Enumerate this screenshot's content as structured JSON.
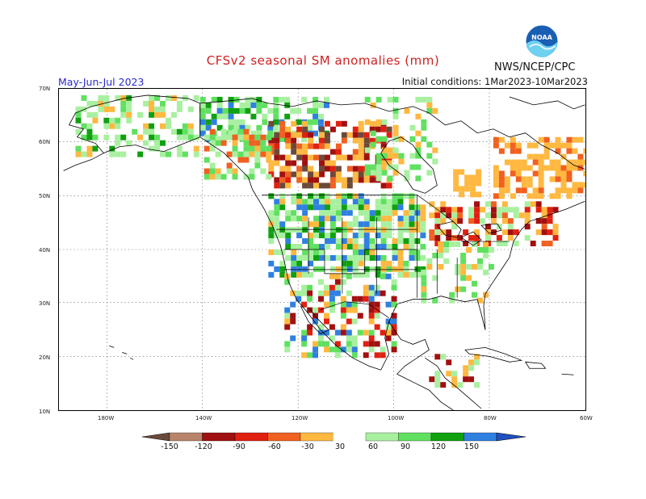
{
  "header": {
    "title": "CFSv2 seasonal SM anomalies (mm)",
    "period": "May-Jun-Jul 2023",
    "initial_conditions": "Initial conditions: 1Mar2023-10Mar2023",
    "agency": "NWS/NCEP/CPC",
    "logo_text": "NOAA"
  },
  "axes": {
    "lat_labels": [
      "70N",
      "60N",
      "50N",
      "40N",
      "30N",
      "20N",
      "10N"
    ],
    "lon_labels": [
      "180W",
      "140W",
      "120W",
      "100W",
      "80W",
      "60W"
    ]
  },
  "legend": {
    "labels": [
      "-150",
      "-120",
      "-90",
      "-60",
      "-30",
      "30",
      "60",
      "90",
      "120",
      "150"
    ],
    "colors": {
      "lt_m150": "#6b4a3a",
      "m150_m120": "#b8856a",
      "m120_m90": "#a01010",
      "m90_m60": "#e02010",
      "m60_m30": "#f06020",
      "m30_0": "#ffb840",
      "neutral": "#ffffff",
      "p30_60": "#a8f0a0",
      "p60_90": "#60e060",
      "p90_120": "#10a010",
      "p120_150": "#3080e0",
      "gt_150": "#2050c0"
    }
  }
}
